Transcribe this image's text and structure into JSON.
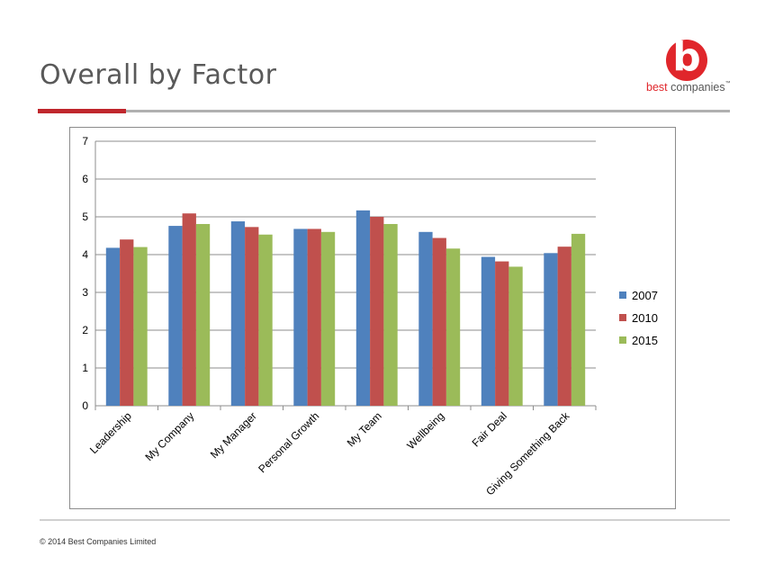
{
  "slide": {
    "title": "Overall by Factor",
    "footer": "© 2014 Best Companies Limited"
  },
  "logo": {
    "icon": "best-companies-b-icon",
    "letter": "b",
    "word1": "best",
    "word2": "companies",
    "trademark": "™",
    "color": "#e0262b"
  },
  "chart_data": {
    "type": "bar",
    "title": "",
    "xlabel": "",
    "ylabel": "",
    "ylim": [
      0,
      7
    ],
    "yticks": [
      "0",
      "1",
      "2",
      "3",
      "4",
      "5",
      "6",
      "7"
    ],
    "grid": true,
    "legend_position": "right",
    "categories": [
      "Leadership",
      "My Company",
      "My Manager",
      "Personal Growth",
      "My Team",
      "Wellbeing",
      "Fair Deal",
      "Giving Something Back"
    ],
    "series": [
      {
        "name": "2007",
        "color": "#4f81bd",
        "values": [
          4.18,
          4.76,
          4.88,
          4.68,
          5.17,
          4.6,
          3.94,
          4.04
        ]
      },
      {
        "name": "2010",
        "color": "#c0504d",
        "values": [
          4.4,
          5.09,
          4.73,
          4.68,
          5.0,
          4.44,
          3.82,
          4.21
        ]
      },
      {
        "name": "2015",
        "color": "#9bbb59",
        "values": [
          4.2,
          4.81,
          4.53,
          4.6,
          4.81,
          4.16,
          3.68,
          4.55
        ]
      }
    ]
  }
}
